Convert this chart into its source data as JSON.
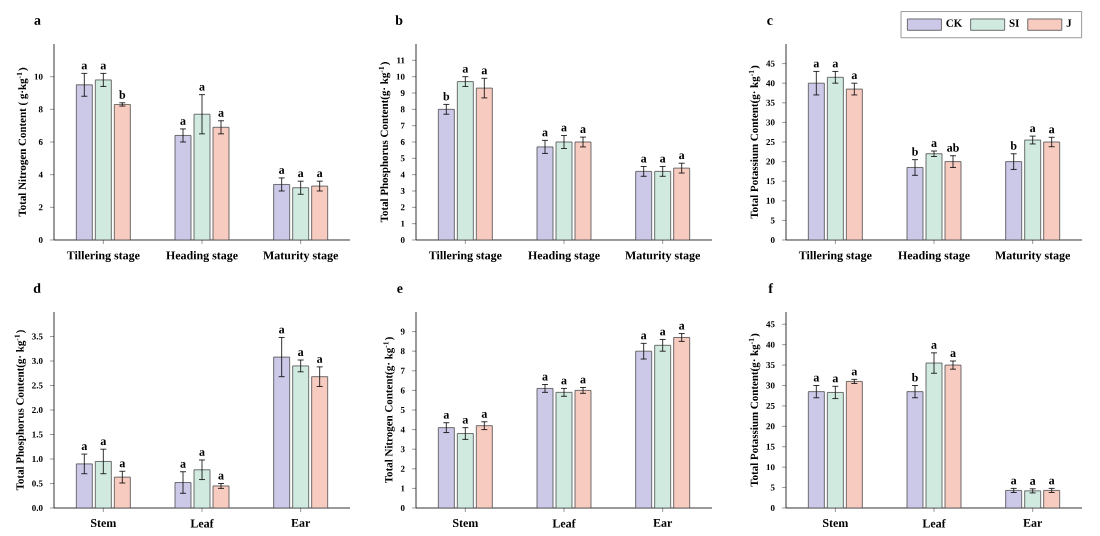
{
  "chart_data": [
    {
      "type": "bar",
      "title": "a",
      "ylabel": "Total Nitrogen Content ( g·kg$^{-1}$)",
      "categories": [
        "Tillering stage",
        "Heading stage",
        "Maturity stage"
      ],
      "ylim": [
        0,
        12
      ],
      "yticks": [
        0,
        2,
        4,
        6,
        8,
        10
      ],
      "series": [
        {
          "color": "#cbc8e8",
          "values": [
            9.5,
            6.4,
            3.4
          ],
          "errors": [
            0.7,
            0.4,
            0.4
          ],
          "value_labels": [
            "a",
            "a",
            "a"
          ]
        },
        {
          "color": "#d0eae0",
          "values": [
            9.8,
            7.7,
            3.2
          ],
          "errors": [
            0.4,
            1.2,
            0.4
          ],
          "value_labels": [
            "a",
            "a",
            "a"
          ]
        },
        {
          "color": "#f7cbc0",
          "values": [
            8.3,
            6.9,
            3.3
          ],
          "errors": [
            0.1,
            0.4,
            0.3
          ],
          "value_labels": [
            "b",
            "a",
            "a"
          ]
        }
      ]
    },
    {
      "type": "bar",
      "title": "b",
      "ylabel": "Total Phosphorus Content(g· kg$^{-1}$)",
      "categories": [
        "Tillering stage",
        "Heading stage",
        "Maturity stage"
      ],
      "ylim": [
        0,
        12
      ],
      "yticks": [
        0,
        1,
        2,
        3,
        4,
        5,
        6,
        7,
        8,
        9,
        10,
        11
      ],
      "series": [
        {
          "color": "#cbc8e8",
          "values": [
            8.0,
            5.7,
            4.2
          ],
          "errors": [
            0.3,
            0.4,
            0.3
          ],
          "value_labels": [
            "b",
            "a",
            "a"
          ]
        },
        {
          "color": "#d0eae0",
          "values": [
            9.7,
            6.0,
            4.2
          ],
          "errors": [
            0.3,
            0.4,
            0.3
          ],
          "value_labels": [
            "a",
            "a",
            "a"
          ]
        },
        {
          "color": "#f7cbc0",
          "values": [
            9.3,
            6.0,
            4.4
          ],
          "errors": [
            0.6,
            0.3,
            0.3
          ],
          "value_labels": [
            "a",
            "a",
            "a"
          ]
        }
      ]
    },
    {
      "type": "bar",
      "title": "c",
      "ylabel": "Total Potassium Content(g· kg$^{-1}$)",
      "categories": [
        "Tillering stage",
        "Heading stage",
        "Maturity stage"
      ],
      "ylim": [
        0,
        50
      ],
      "yticks": [
        0,
        5,
        10,
        15,
        20,
        25,
        30,
        35,
        40,
        45
      ],
      "legend": "top right",
      "series": [
        {
          "name": "CK",
          "color": "#cbc8e8",
          "values": [
            40,
            18.5,
            20
          ],
          "errors": [
            3,
            2,
            2
          ],
          "value_labels": [
            "a",
            "b",
            "b"
          ]
        },
        {
          "name": "SI",
          "color": "#d0eae0",
          "values": [
            41.5,
            22,
            25.5
          ],
          "errors": [
            1.5,
            0.7,
            1
          ],
          "value_labels": [
            "a",
            "a",
            "a"
          ]
        },
        {
          "name": "J",
          "color": "#f7cbc0",
          "values": [
            38.5,
            20,
            25
          ],
          "errors": [
            1.5,
            1.5,
            1.2
          ],
          "value_labels": [
            "a",
            "ab",
            "a"
          ]
        }
      ]
    },
    {
      "type": "bar",
      "title": "d",
      "ylabel": "Total Phosphorus Content(g· kg$^{-1}$)",
      "categories": [
        "Stem",
        "Leaf",
        "Ear"
      ],
      "ylim": [
        0,
        4
      ],
      "yticks": [
        {
          "value": 0,
          "label": "0.0"
        },
        {
          "value": 0.5,
          "label": "0.5"
        },
        {
          "value": 1,
          "label": "1.0"
        },
        {
          "value": 1.5,
          "label": "1.5"
        },
        {
          "value": 2,
          "label": "2.0"
        },
        {
          "value": 2.5,
          "label": "2.5"
        },
        {
          "value": 3,
          "label": "3.0"
        },
        {
          "value": 3.5,
          "label": "3.5"
        }
      ],
      "series": [
        {
          "color": "#cbc8e8",
          "values": [
            0.9,
            0.52,
            3.08
          ],
          "errors": [
            0.2,
            0.22,
            0.4
          ],
          "value_labels": [
            "a",
            "a",
            "a"
          ]
        },
        {
          "color": "#d0eae0",
          "values": [
            0.95,
            0.78,
            2.9
          ],
          "errors": [
            0.25,
            0.2,
            0.12
          ],
          "value_labels": [
            "a",
            "a",
            "a"
          ]
        },
        {
          "color": "#f7cbc0",
          "values": [
            0.63,
            0.45,
            2.68
          ],
          "errors": [
            0.12,
            0.05,
            0.2
          ],
          "value_labels": [
            "a",
            "a",
            "a"
          ]
        }
      ]
    },
    {
      "type": "bar",
      "title": "e",
      "ylabel": "Total Nitrogen Content(g· kg$^{-1}$)",
      "categories": [
        "Stem",
        "Leaf",
        "Ear"
      ],
      "ylim": [
        0,
        10
      ],
      "yticks": [
        0,
        1,
        2,
        3,
        4,
        5,
        6,
        7,
        8,
        9
      ],
      "series": [
        {
          "color": "#cbc8e8",
          "values": [
            4.1,
            6.1,
            8.0
          ],
          "errors": [
            0.25,
            0.2,
            0.4
          ],
          "value_labels": [
            "a",
            "a",
            "a"
          ]
        },
        {
          "color": "#d0eae0",
          "values": [
            3.8,
            5.9,
            8.3
          ],
          "errors": [
            0.3,
            0.2,
            0.3
          ],
          "value_labels": [
            "a",
            "a",
            "a"
          ]
        },
        {
          "color": "#f7cbc0",
          "values": [
            4.2,
            6.0,
            8.7
          ],
          "errors": [
            0.2,
            0.15,
            0.2
          ],
          "value_labels": [
            "a",
            "a",
            "a"
          ]
        }
      ]
    },
    {
      "type": "bar",
      "title": "f",
      "ylabel": "Total Potassium Content(g· kg$^{-1}$)",
      "categories": [
        "Stem",
        "Leaf",
        "Ear"
      ],
      "ylim": [
        0,
        48
      ],
      "yticks": [
        0,
        5,
        10,
        15,
        20,
        25,
        30,
        35,
        40,
        45
      ],
      "series": [
        {
          "color": "#cbc8e8",
          "values": [
            28.5,
            28.5,
            4.3
          ],
          "errors": [
            1.5,
            1.5,
            0.5
          ],
          "value_labels": [
            "a",
            "b",
            "a"
          ]
        },
        {
          "color": "#d0eae0",
          "values": [
            28.3,
            35.5,
            4.2
          ],
          "errors": [
            1.5,
            2.5,
            0.5
          ],
          "value_labels": [
            "a",
            "a",
            "a"
          ]
        },
        {
          "color": "#f7cbc0",
          "values": [
            31,
            35,
            4.3
          ],
          "errors": [
            0.5,
            1,
            0.5
          ],
          "value_labels": [
            "a",
            "a",
            "a"
          ]
        }
      ]
    }
  ]
}
